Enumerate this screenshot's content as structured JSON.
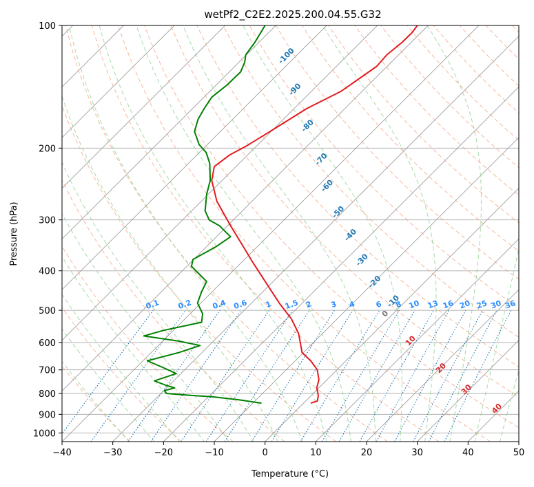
{
  "chart_data": {
    "type": "line",
    "title": "wetPf2_C2E2.2025.200.04.55.G32",
    "xlabel": "Temperature (°C)",
    "ylabel": "Pressure (hPa)",
    "xlim": [
      -40,
      50
    ],
    "ylim": [
      1050,
      100
    ],
    "yscale": "log",
    "x_ticks": [
      "−40",
      "−30",
      "−20",
      "−10",
      "0",
      "10",
      "20",
      "30",
      "40",
      "50"
    ],
    "y_ticks": [
      "100",
      "200",
      "300",
      "400",
      "500",
      "600",
      "700",
      "800",
      "900",
      "1000"
    ],
    "grid": true,
    "series": [
      {
        "color": "#e31a1c",
        "kind": "temperature",
        "points": [
          [
            9,
            845
          ],
          [
            10.3,
            835
          ],
          [
            10.5,
            810
          ],
          [
            10.2,
            775
          ],
          [
            10.6,
            740
          ],
          [
            10.3,
            700
          ],
          [
            9.0,
            665
          ],
          [
            7.3,
            635
          ],
          [
            7.0,
            605
          ],
          [
            6.6,
            570
          ],
          [
            5.2,
            525
          ],
          [
            2.8,
            480
          ],
          [
            0.3,
            430
          ],
          [
            -2.5,
            380
          ],
          [
            -4.7,
            342
          ],
          [
            -6.8,
            310
          ],
          [
            -9.5,
            270
          ],
          [
            -10.5,
            240
          ],
          [
            -10.0,
            222
          ],
          [
            -7.0,
            208
          ],
          [
            -3.8,
            198
          ],
          [
            1.0,
            182
          ],
          [
            8.2,
            160
          ],
          [
            15,
            145
          ],
          [
            22.0,
            126
          ],
          [
            24.0,
            118
          ],
          [
            27.0,
            110
          ],
          [
            29.0,
            104
          ],
          [
            30,
            100
          ]
        ]
      },
      {
        "color": "#008000",
        "kind": "dewpoint",
        "points": [
          [
            -0.7,
            845
          ],
          [
            -5.5,
            828
          ],
          [
            -10.5,
            815
          ],
          [
            -14.5,
            809
          ],
          [
            -19.4,
            800
          ],
          [
            -19.8,
            787
          ],
          [
            -17.8,
            775
          ],
          [
            -19.4,
            765
          ],
          [
            -21.8,
            745
          ],
          [
            -17.5,
            715
          ],
          [
            -20.2,
            690
          ],
          [
            -23.2,
            665
          ],
          [
            -17.0,
            635
          ],
          [
            -12.8,
            610
          ],
          [
            -17.0,
            595
          ],
          [
            -23.9,
            578
          ],
          [
            -20.0,
            560
          ],
          [
            -12.5,
            535
          ],
          [
            -12.3,
            510
          ],
          [
            -13.3,
            480
          ],
          [
            -12.5,
            450
          ],
          [
            -11.5,
            425
          ],
          [
            -14.5,
            390
          ],
          [
            -14.2,
            375
          ],
          [
            -9.8,
            350
          ],
          [
            -6.8,
            330
          ],
          [
            -9.0,
            310
          ],
          [
            -11.0,
            300
          ],
          [
            -11.8,
            285
          ],
          [
            -11.5,
            260
          ],
          [
            -10.8,
            240
          ],
          [
            -10.9,
            218
          ],
          [
            -11.6,
            205
          ],
          [
            -13.0,
            196
          ],
          [
            -13.9,
            182
          ],
          [
            -13.2,
            170
          ],
          [
            -12.0,
            160
          ],
          [
            -10.5,
            150
          ],
          [
            -7.5,
            140
          ],
          [
            -4.8,
            130
          ],
          [
            -4.0,
            123
          ],
          [
            -3.8,
            118
          ],
          [
            -2.0,
            110
          ],
          [
            0,
            100
          ]
        ]
      }
    ],
    "dry_adiabat_labels": [
      "-100",
      "-90",
      "-80",
      "-70",
      "-60",
      "-50",
      "-40",
      "-30",
      "-20",
      "-10"
    ],
    "moist_adiabat_labels": [
      "0",
      "10",
      "20",
      "30",
      "40"
    ],
    "mixing_ratio_labels": [
      "0.1",
      "0.2",
      "0.4",
      "0.6",
      "1",
      "1.5",
      "2",
      "3",
      "4",
      "6",
      "8",
      "10",
      "13",
      "16",
      "20",
      "25",
      "30",
      "36"
    ],
    "colors": {
      "temperature": "#e31a1c",
      "dewpoint": "#008000",
      "dry_adiabat": "#f4a582",
      "moist_adiabat": "#8fd18f",
      "mixing_ratio": "#1f77b4",
      "isotherm": "#9e9e9e"
    }
  }
}
